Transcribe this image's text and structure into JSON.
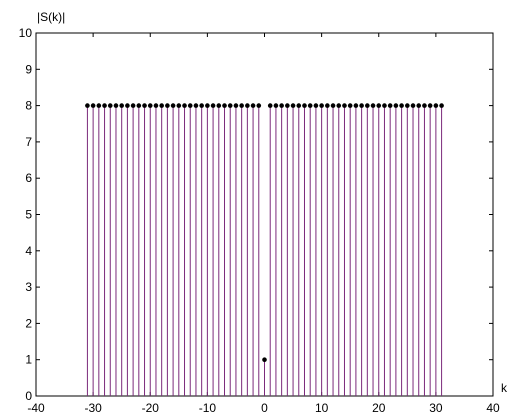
{
  "chart_data": {
    "type": "stem",
    "title": "",
    "xlabel": "k",
    "ylabel": "|S(k)|",
    "xlim": [
      -40,
      40
    ],
    "ylim": [
      0,
      10
    ],
    "xticks": [
      -40,
      -30,
      -20,
      -10,
      0,
      10,
      20,
      30,
      40
    ],
    "yticks": [
      0,
      1,
      2,
      3,
      4,
      5,
      6,
      7,
      8,
      9,
      10
    ],
    "grid": false,
    "stem_color": "#7b2a7b",
    "marker_color": "#000000",
    "x": [
      -31,
      -30,
      -29,
      -28,
      -27,
      -26,
      -25,
      -24,
      -23,
      -22,
      -21,
      -20,
      -19,
      -18,
      -17,
      -16,
      -15,
      -14,
      -13,
      -12,
      -11,
      -10,
      -9,
      -8,
      -7,
      -6,
      -5,
      -4,
      -3,
      -2,
      -1,
      0,
      1,
      2,
      3,
      4,
      5,
      6,
      7,
      8,
      9,
      10,
      11,
      12,
      13,
      14,
      15,
      16,
      17,
      18,
      19,
      20,
      21,
      22,
      23,
      24,
      25,
      26,
      27,
      28,
      29,
      30,
      31
    ],
    "values": [
      8,
      8,
      8,
      8,
      8,
      8,
      8,
      8,
      8,
      8,
      8,
      8,
      8,
      8,
      8,
      8,
      8,
      8,
      8,
      8,
      8,
      8,
      8,
      8,
      8,
      8,
      8,
      8,
      8,
      8,
      8,
      1,
      8,
      8,
      8,
      8,
      8,
      8,
      8,
      8,
      8,
      8,
      8,
      8,
      8,
      8,
      8,
      8,
      8,
      8,
      8,
      8,
      8,
      8,
      8,
      8,
      8,
      8,
      8,
      8,
      8,
      8,
      8
    ]
  }
}
